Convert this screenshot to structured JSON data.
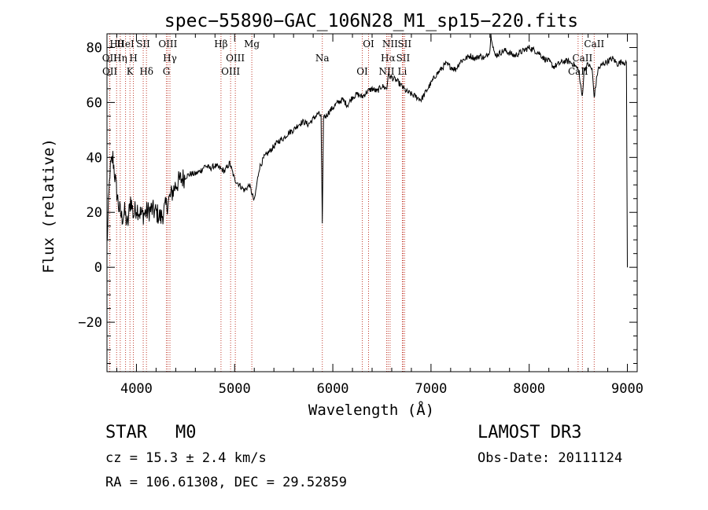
{
  "chart_data": {
    "type": "line",
    "title": "spec−55890−GAC_106N28_M1_sp15−220.fits",
    "xlabel": "Wavelength (Å)",
    "ylabel": "Flux (relative)",
    "xlim": [
      3700,
      9100
    ],
    "ylim": [
      -38,
      85
    ],
    "xticks": [
      4000,
      5000,
      6000,
      7000,
      8000,
      9000
    ],
    "xtick_labels": [
      "4000",
      "5000",
      "6000",
      "7000",
      "8000",
      "9000"
    ],
    "yticks": [
      -20,
      0,
      20,
      40,
      60,
      80
    ],
    "ytick_labels": [
      "−20",
      "0",
      "20",
      "40",
      "60",
      "80"
    ],
    "series": [
      {
        "name": "spectrum",
        "x": [
          3700,
          3730,
          3760,
          3790,
          3820,
          3850,
          3880,
          3910,
          3940,
          3970,
          4000,
          4050,
          4100,
          4150,
          4200,
          4250,
          4300,
          4350,
          4400,
          4450,
          4500,
          4550,
          4600,
          4650,
          4700,
          4750,
          4800,
          4850,
          4900,
          4950,
          5000,
          5050,
          5100,
          5150,
          5200,
          5250,
          5300,
          5350,
          5400,
          5450,
          5500,
          5550,
          5600,
          5650,
          5700,
          5750,
          5800,
          5850,
          5880,
          5893,
          5905,
          5930,
          5970,
          6000,
          6050,
          6100,
          6150,
          6200,
          6250,
          6300,
          6350,
          6400,
          6450,
          6500,
          6550,
          6563,
          6600,
          6650,
          6700,
          6750,
          6800,
          6850,
          6900,
          6950,
          7000,
          7050,
          7100,
          7150,
          7200,
          7250,
          7300,
          7350,
          7400,
          7450,
          7500,
          7550,
          7600,
          7610,
          7650,
          7700,
          7750,
          7800,
          7850,
          7900,
          7950,
          8000,
          8050,
          8100,
          8150,
          8200,
          8250,
          8300,
          8350,
          8400,
          8450,
          8500,
          8540,
          8560,
          8600,
          8640,
          8662,
          8700,
          8750,
          8800,
          8850,
          8900,
          8950,
          8990,
          9000
        ],
        "y": [
          8,
          35,
          40,
          30,
          22,
          18,
          20,
          15,
          25,
          19,
          22,
          19,
          20,
          21,
          20,
          18,
          22,
          26,
          30,
          32,
          33,
          34,
          34,
          35,
          37,
          36,
          37,
          36,
          35,
          38,
          32,
          30,
          28,
          30,
          24,
          36,
          40,
          42,
          44,
          46,
          47,
          49,
          50,
          52,
          53,
          52,
          54,
          56,
          55,
          15,
          55,
          55,
          57,
          58,
          60,
          61,
          59,
          62,
          63,
          62,
          64,
          65,
          64,
          66,
          65,
          70,
          69,
          68,
          66,
          64,
          63,
          62,
          61,
          64,
          67,
          70,
          72,
          74,
          73,
          72,
          75,
          76,
          77,
          76,
          77,
          76,
          79,
          85,
          77,
          78,
          79,
          78,
          77,
          78,
          79,
          80,
          79,
          78,
          76,
          75,
          73,
          74,
          75,
          75,
          74,
          72,
          62,
          72,
          74,
          72,
          62,
          72,
          74,
          75,
          76,
          74,
          75,
          74,
          0
        ]
      }
    ],
    "line_markers": [
      {
        "label": "Hθ",
        "x": 3798
      },
      {
        "label": "OII",
        "x": 3727
      },
      {
        "label": "OII",
        "x": 3729
      },
      {
        "label": "HeI",
        "x": 3889
      },
      {
        "label": "Hη",
        "x": 3835
      },
      {
        "label": "K",
        "x": 3934
      },
      {
        "label": "SII",
        "x": 4069
      },
      {
        "label": "H",
        "x": 3969
      },
      {
        "label": "Hδ",
        "x": 4102
      },
      {
        "label": "OIII",
        "x": 4320
      },
      {
        "label": "Hγ",
        "x": 4341
      },
      {
        "label": "G",
        "x": 4305
      },
      {
        "label": "Hβ",
        "x": 4861
      },
      {
        "label": "OIII",
        "x": 5007
      },
      {
        "label": "OIII",
        "x": 4959
      },
      {
        "label": "Mg",
        "x": 5175
      },
      {
        "label": "Na",
        "x": 5893
      },
      {
        "label": "OI",
        "x": 6300
      },
      {
        "label": "OI",
        "x": 6364
      },
      {
        "label": "Hα",
        "x": 6563
      },
      {
        "label": "NII",
        "x": 6548
      },
      {
        "label": "NII",
        "x": 6583
      },
      {
        "label": "SII",
        "x": 6716
      },
      {
        "label": "Li",
        "x": 6708
      },
      {
        "label": "SII",
        "x": 6731
      },
      {
        "label": "CaII",
        "x": 8542
      },
      {
        "label": "CaII",
        "x": 8498
      },
      {
        "label": "CaII",
        "x": 8662
      }
    ]
  },
  "info": {
    "object_class": "STAR",
    "subclass": "M0",
    "survey": "LAMOST DR3",
    "redshift_text": "cz = 15.3 ± 2.4 km/s",
    "obs_date_text": "Obs-Date: 20111124",
    "coords_text": "RA = 106.61308, DEC =  29.52859"
  }
}
